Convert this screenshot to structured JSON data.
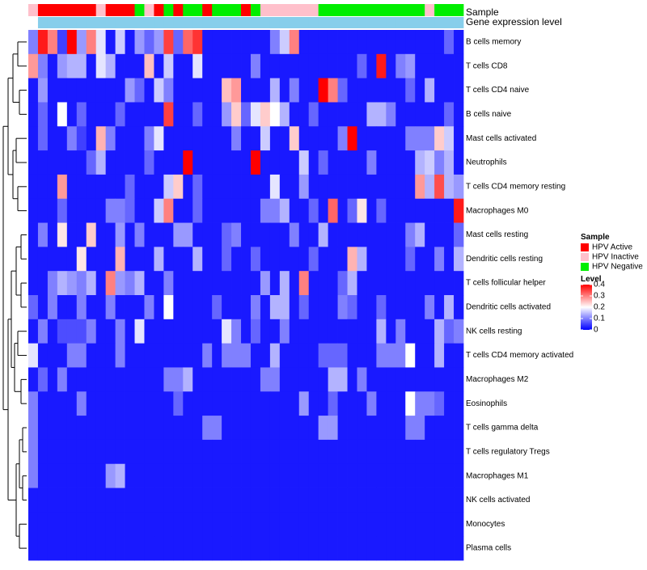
{
  "chart_data": {
    "type": "heatmap",
    "title": "",
    "annotation_tracks": [
      "Sample",
      "Gene expression level"
    ],
    "rows": [
      "B cells memory",
      "T cells CD8",
      "T cells CD4 naive",
      "B cells naive",
      "Mast cells activated",
      "Neutrophils",
      "T cells CD4 memory resting",
      "Macrophages M0",
      "Mast cells resting",
      "Dendritic cells resting",
      "T cells follicular helper",
      "Dendritic cells activated",
      "NK cells resting",
      "T cells CD4 memory activated",
      "Macrophages M2",
      "Eosinophils",
      "T cells gamma delta",
      "T cells regulatory  Tregs",
      "Macrophages M1",
      "NK cells activated",
      "Monocytes",
      "Plasma cells"
    ],
    "sample_groups": [
      "Inactive",
      "Active",
      "Active",
      "Active",
      "Active",
      "Active",
      "Active",
      "Inactive",
      "Active",
      "Active",
      "Active",
      "Negative",
      "Inactive",
      "Active",
      "Negative",
      "Active",
      "Negative",
      "Negative",
      "Active",
      "Negative",
      "Negative",
      "Negative",
      "Active",
      "Negative",
      "Inactive",
      "Inactive",
      "Inactive",
      "Inactive",
      "Inactive",
      "Inactive",
      "Negative",
      "Negative",
      "Negative",
      "Negative",
      "Negative",
      "Negative",
      "Negative",
      "Negative",
      "Negative",
      "Negative",
      "Negative",
      "Inactive",
      "Negative",
      "Negative",
      "Negative"
    ],
    "sample_group_colors": {
      "Active": "#ff0000",
      "Inactive": "#ffc0cb",
      "Negative": "#00ee00"
    },
    "gene_expression_track_colors": [
      "#ffffff",
      "#87ceeb",
      "#87ceeb",
      "#87ceeb",
      "#87ceeb",
      "#87ceeb",
      "#87ceeb",
      "#87ceeb",
      "#87ceeb",
      "#87ceeb",
      "#87ceeb",
      "#87ceeb",
      "#87ceeb",
      "#87ceeb",
      "#87ceeb",
      "#87ceeb",
      "#87ceeb",
      "#87ceeb",
      "#87ceeb",
      "#87ceeb",
      "#87ceeb",
      "#87ceeb",
      "#87ceeb",
      "#87ceeb",
      "#87ceeb",
      "#87ceeb",
      "#87ceeb",
      "#87ceeb",
      "#87ceeb",
      "#87ceeb",
      "#87ceeb",
      "#87ceeb",
      "#87ceeb",
      "#87ceeb",
      "#87ceeb",
      "#87ceeb",
      "#87ceeb",
      "#87ceeb",
      "#87ceeb",
      "#87ceeb",
      "#87ceeb",
      "#87ceeb",
      "#87ceeb",
      "#87ceeb",
      "#87ceeb"
    ],
    "values": [
      [
        0.1,
        0.38,
        0.3,
        0.05,
        0.4,
        0.12,
        0.3,
        0.18,
        0.02,
        0.16,
        0.02,
        0.12,
        0.08,
        0.12,
        0.35,
        0.08,
        0.32,
        0.36,
        0.02,
        0.02,
        0.02,
        0.02,
        0.02,
        0.02,
        0.02,
        0.1,
        0.16,
        0.3,
        0.02,
        0.02,
        0.02,
        0.02,
        0.02,
        0.02,
        0.02,
        0.02,
        0.02,
        0.02,
        0.02,
        0.02,
        0.02,
        0.02,
        0.02,
        0.08,
        0.02
      ],
      [
        0.28,
        0.1,
        0.02,
        0.12,
        0.14,
        0.14,
        0.02,
        0.18,
        0.14,
        0.02,
        0.02,
        0.02,
        0.25,
        0.02,
        0.16,
        0.02,
        0.02,
        0.18,
        0.02,
        0.02,
        0.02,
        0.02,
        0.02,
        0.1,
        0.02,
        0.02,
        0.02,
        0.02,
        0.02,
        0.02,
        0.02,
        0.02,
        0.02,
        0.02,
        0.08,
        0.02,
        0.38,
        0.02,
        0.1,
        0.12,
        0.02,
        0.02,
        0.02,
        0.02,
        0.02
      ],
      [
        0.02,
        0.12,
        0.02,
        0.02,
        0.02,
        0.02,
        0.02,
        0.02,
        0.02,
        0.02,
        0.12,
        0.08,
        0.02,
        0.16,
        0.1,
        0.02,
        0.02,
        0.02,
        0.02,
        0.02,
        0.25,
        0.28,
        0.02,
        0.02,
        0.02,
        0.14,
        0.02,
        0.1,
        0.02,
        0.02,
        0.4,
        0.3,
        0.08,
        0.02,
        0.02,
        0.02,
        0.02,
        0.02,
        0.02,
        0.08,
        0.02,
        0.14,
        0.02,
        0.02,
        0.02
      ],
      [
        0.02,
        0.08,
        0.02,
        0.2,
        0.02,
        0.08,
        0.02,
        0.02,
        0.02,
        0.08,
        0.02,
        0.02,
        0.02,
        0.02,
        0.35,
        0.02,
        0.02,
        0.08,
        0.02,
        0.02,
        0.12,
        0.24,
        0.08,
        0.18,
        0.24,
        0.2,
        0.14,
        0.02,
        0.02,
        0.08,
        0.02,
        0.02,
        0.02,
        0.02,
        0.02,
        0.14,
        0.14,
        0.1,
        0.02,
        0.02,
        0.02,
        0.02,
        0.02,
        0.08,
        0.02
      ],
      [
        0.02,
        0.08,
        0.02,
        0.02,
        0.1,
        0.05,
        0.02,
        0.26,
        0.1,
        0.02,
        0.02,
        0.02,
        0.1,
        0.18,
        0.02,
        0.02,
        0.02,
        0.02,
        0.02,
        0.02,
        0.02,
        0.1,
        0.02,
        0.02,
        0.16,
        0.02,
        0.02,
        0.24,
        0.02,
        0.02,
        0.02,
        0.02,
        0.1,
        0.4,
        0.02,
        0.02,
        0.02,
        0.02,
        0.02,
        0.1,
        0.1,
        0.1,
        0.24,
        0.16,
        0.02
      ],
      [
        0.02,
        0.02,
        0.02,
        0.02,
        0.02,
        0.02,
        0.08,
        0.14,
        0.02,
        0.02,
        0.02,
        0.02,
        0.08,
        0.02,
        0.02,
        0.02,
        0.4,
        0.02,
        0.02,
        0.02,
        0.02,
        0.02,
        0.02,
        0.4,
        0.02,
        0.02,
        0.02,
        0.02,
        0.16,
        0.02,
        0.08,
        0.02,
        0.02,
        0.02,
        0.02,
        0.1,
        0.02,
        0.02,
        0.02,
        0.02,
        0.14,
        0.16,
        0.1,
        0.14,
        0.02
      ],
      [
        0.02,
        0.02,
        0.02,
        0.28,
        0.02,
        0.02,
        0.02,
        0.02,
        0.02,
        0.02,
        0.08,
        0.02,
        0.02,
        0.02,
        0.16,
        0.24,
        0.02,
        0.08,
        0.02,
        0.02,
        0.02,
        0.02,
        0.02,
        0.02,
        0.02,
        0.18,
        0.02,
        0.02,
        0.12,
        0.02,
        0.02,
        0.02,
        0.02,
        0.02,
        0.02,
        0.02,
        0.02,
        0.02,
        0.02,
        0.02,
        0.28,
        0.14,
        0.34,
        0.14,
        0.12
      ],
      [
        0.02,
        0.02,
        0.02,
        0.08,
        0.02,
        0.02,
        0.02,
        0.02,
        0.1,
        0.1,
        0.08,
        0.02,
        0.02,
        0.16,
        0.3,
        0.02,
        0.02,
        0.08,
        0.02,
        0.02,
        0.02,
        0.02,
        0.02,
        0.02,
        0.1,
        0.1,
        0.14,
        0.02,
        0.02,
        0.08,
        0.02,
        0.32,
        0.02,
        0.08,
        0.22,
        0.02,
        0.08,
        0.02,
        0.02,
        0.02,
        0.02,
        0.02,
        0.02,
        0.02,
        0.38
      ],
      [
        0.02,
        0.1,
        0.02,
        0.22,
        0.02,
        0.02,
        0.24,
        0.02,
        0.02,
        0.12,
        0.02,
        0.1,
        0.02,
        0.02,
        0.02,
        0.12,
        0.12,
        0.02,
        0.02,
        0.02,
        0.08,
        0.1,
        0.02,
        0.02,
        0.02,
        0.02,
        0.02,
        0.1,
        0.02,
        0.02,
        0.14,
        0.02,
        0.02,
        0.02,
        0.02,
        0.02,
        0.02,
        0.02,
        0.02,
        0.1,
        0.14,
        0.02,
        0.02,
        0.02,
        0.08
      ],
      [
        0.02,
        0.02,
        0.02,
        0.02,
        0.02,
        0.22,
        0.02,
        0.02,
        0.02,
        0.26,
        0.02,
        0.02,
        0.02,
        0.14,
        0.02,
        0.02,
        0.02,
        0.14,
        0.02,
        0.02,
        0.08,
        0.02,
        0.02,
        0.08,
        0.02,
        0.02,
        0.02,
        0.02,
        0.02,
        0.08,
        0.02,
        0.02,
        0.02,
        0.26,
        0.14,
        0.02,
        0.02,
        0.02,
        0.02,
        0.08,
        0.02,
        0.02,
        0.1,
        0.02,
        0.14
      ],
      [
        0.02,
        0.02,
        0.1,
        0.14,
        0.12,
        0.1,
        0.14,
        0.02,
        0.3,
        0.12,
        0.1,
        0.14,
        0.02,
        0.02,
        0.1,
        0.02,
        0.02,
        0.02,
        0.02,
        0.02,
        0.02,
        0.02,
        0.02,
        0.02,
        0.12,
        0.02,
        0.14,
        0.02,
        0.3,
        0.02,
        0.02,
        0.02,
        0.08,
        0.14,
        0.02,
        0.02,
        0.02,
        0.02,
        0.02,
        0.02,
        0.02,
        0.02,
        0.02,
        0.02,
        0.02
      ],
      [
        0.08,
        0.02,
        0.1,
        0.02,
        0.02,
        0.1,
        0.02,
        0.02,
        0.1,
        0.02,
        0.02,
        0.02,
        0.1,
        0.02,
        0.2,
        0.02,
        0.02,
        0.02,
        0.02,
        0.08,
        0.02,
        0.02,
        0.02,
        0.1,
        0.02,
        0.14,
        0.14,
        0.02,
        0.08,
        0.02,
        0.02,
        0.02,
        0.1,
        0.08,
        0.02,
        0.02,
        0.08,
        0.02,
        0.02,
        0.02,
        0.02,
        0.1,
        0.02,
        0.14,
        0.02
      ],
      [
        0.02,
        0.1,
        0.02,
        0.06,
        0.06,
        0.06,
        0.1,
        0.02,
        0.02,
        0.1,
        0.02,
        0.18,
        0.02,
        0.02,
        0.02,
        0.02,
        0.02,
        0.02,
        0.02,
        0.02,
        0.18,
        0.1,
        0.02,
        0.08,
        0.02,
        0.02,
        0.1,
        0.02,
        0.02,
        0.02,
        0.02,
        0.02,
        0.02,
        0.02,
        0.02,
        0.02,
        0.14,
        0.02,
        0.1,
        0.02,
        0.02,
        0.02,
        0.14,
        0.08,
        0.1
      ],
      [
        0.18,
        0.02,
        0.02,
        0.02,
        0.1,
        0.1,
        0.02,
        0.02,
        0.02,
        0.1,
        0.02,
        0.02,
        0.02,
        0.02,
        0.02,
        0.02,
        0.02,
        0.02,
        0.1,
        0.02,
        0.1,
        0.1,
        0.1,
        0.02,
        0.02,
        0.14,
        0.02,
        0.02,
        0.02,
        0.02,
        0.08,
        0.08,
        0.08,
        0.02,
        0.02,
        0.02,
        0.1,
        0.1,
        0.1,
        0.2,
        0.02,
        0.02,
        0.14,
        0.02,
        0.02
      ],
      [
        0.02,
        0.08,
        0.02,
        0.1,
        0.02,
        0.02,
        0.02,
        0.02,
        0.02,
        0.02,
        0.02,
        0.02,
        0.02,
        0.02,
        0.1,
        0.1,
        0.14,
        0.02,
        0.02,
        0.02,
        0.02,
        0.02,
        0.02,
        0.02,
        0.1,
        0.1,
        0.02,
        0.02,
        0.02,
        0.02,
        0.02,
        0.14,
        0.14,
        0.02,
        0.1,
        0.02,
        0.02,
        0.02,
        0.02,
        0.02,
        0.02,
        0.02,
        0.02,
        0.02,
        0.02
      ],
      [
        0.1,
        0.02,
        0.02,
        0.02,
        0.02,
        0.1,
        0.02,
        0.02,
        0.02,
        0.02,
        0.02,
        0.02,
        0.02,
        0.02,
        0.02,
        0.08,
        0.02,
        0.02,
        0.02,
        0.02,
        0.02,
        0.02,
        0.02,
        0.02,
        0.02,
        0.02,
        0.02,
        0.02,
        0.12,
        0.02,
        0.02,
        0.08,
        0.02,
        0.02,
        0.02,
        0.1,
        0.02,
        0.02,
        0.02,
        0.2,
        0.1,
        0.1,
        0.08,
        0.02,
        0.02
      ],
      [
        0.1,
        0.02,
        0.02,
        0.02,
        0.02,
        0.02,
        0.02,
        0.02,
        0.02,
        0.02,
        0.02,
        0.02,
        0.02,
        0.02,
        0.02,
        0.02,
        0.02,
        0.02,
        0.1,
        0.1,
        0.02,
        0.02,
        0.02,
        0.02,
        0.02,
        0.02,
        0.02,
        0.02,
        0.02,
        0.02,
        0.12,
        0.12,
        0.02,
        0.02,
        0.02,
        0.02,
        0.02,
        0.02,
        0.02,
        0.1,
        0.1,
        0.02,
        0.02,
        0.02,
        0.02
      ],
      [
        0.1,
        0.02,
        0.02,
        0.02,
        0.02,
        0.02,
        0.02,
        0.02,
        0.02,
        0.02,
        0.02,
        0.02,
        0.02,
        0.02,
        0.02,
        0.02,
        0.02,
        0.02,
        0.02,
        0.02,
        0.02,
        0.02,
        0.02,
        0.02,
        0.02,
        0.02,
        0.02,
        0.02,
        0.02,
        0.02,
        0.02,
        0.02,
        0.02,
        0.02,
        0.02,
        0.02,
        0.02,
        0.02,
        0.02,
        0.02,
        0.02,
        0.02,
        0.02,
        0.02,
        0.02
      ],
      [
        0.1,
        0.02,
        0.02,
        0.02,
        0.02,
        0.02,
        0.02,
        0.02,
        0.12,
        0.14,
        0.02,
        0.02,
        0.02,
        0.02,
        0.02,
        0.02,
        0.02,
        0.02,
        0.02,
        0.02,
        0.02,
        0.02,
        0.02,
        0.02,
        0.02,
        0.02,
        0.02,
        0.02,
        0.02,
        0.02,
        0.02,
        0.02,
        0.02,
        0.02,
        0.02,
        0.02,
        0.02,
        0.02,
        0.02,
        0.02,
        0.02,
        0.02,
        0.02,
        0.02,
        0.02
      ],
      [
        0.02,
        0.02,
        0.02,
        0.02,
        0.02,
        0.02,
        0.02,
        0.02,
        0.02,
        0.02,
        0.02,
        0.02,
        0.02,
        0.02,
        0.02,
        0.02,
        0.02,
        0.02,
        0.02,
        0.02,
        0.02,
        0.02,
        0.02,
        0.02,
        0.02,
        0.02,
        0.02,
        0.02,
        0.02,
        0.02,
        0.02,
        0.02,
        0.02,
        0.02,
        0.02,
        0.02,
        0.02,
        0.02,
        0.02,
        0.02,
        0.02,
        0.02,
        0.02,
        0.02,
        0.02
      ],
      [
        0.02,
        0.02,
        0.02,
        0.02,
        0.02,
        0.02,
        0.02,
        0.02,
        0.02,
        0.02,
        0.02,
        0.02,
        0.02,
        0.02,
        0.02,
        0.02,
        0.02,
        0.02,
        0.02,
        0.02,
        0.02,
        0.02,
        0.02,
        0.02,
        0.02,
        0.02,
        0.02,
        0.02,
        0.02,
        0.02,
        0.02,
        0.02,
        0.02,
        0.02,
        0.02,
        0.02,
        0.02,
        0.02,
        0.02,
        0.02,
        0.02,
        0.02,
        0.02,
        0.02,
        0.02
      ],
      [
        0.02,
        0.02,
        0.02,
        0.02,
        0.02,
        0.02,
        0.02,
        0.02,
        0.02,
        0.02,
        0.02,
        0.02,
        0.02,
        0.02,
        0.02,
        0.02,
        0.02,
        0.02,
        0.02,
        0.02,
        0.02,
        0.02,
        0.02,
        0.02,
        0.02,
        0.02,
        0.02,
        0.02,
        0.02,
        0.02,
        0.02,
        0.02,
        0.02,
        0.02,
        0.02,
        0.02,
        0.02,
        0.02,
        0.02,
        0.02,
        0.02,
        0.02,
        0.02,
        0.02,
        0.02
      ]
    ],
    "value_range": [
      0,
      0.4
    ],
    "color_scale": [
      "#0000ff",
      "#ffffff",
      "#ff0000"
    ],
    "legend_placement": "right",
    "legends": {
      "sample": {
        "title": "Sample",
        "items": [
          {
            "label": "HPV Active",
            "color": "#ff0000"
          },
          {
            "label": "HPV Inactive",
            "color": "#ffc0cb"
          },
          {
            "label": "HPV Negative",
            "color": "#00ee00"
          }
        ]
      },
      "level": {
        "title": "Level",
        "ticks": [
          "0.4",
          "0.3",
          "0.2",
          "0.1",
          "0"
        ],
        "tick_values": [
          0.4,
          0.3,
          0.2,
          0.1,
          0
        ]
      }
    },
    "row_dendrogram": true,
    "grid": false
  }
}
